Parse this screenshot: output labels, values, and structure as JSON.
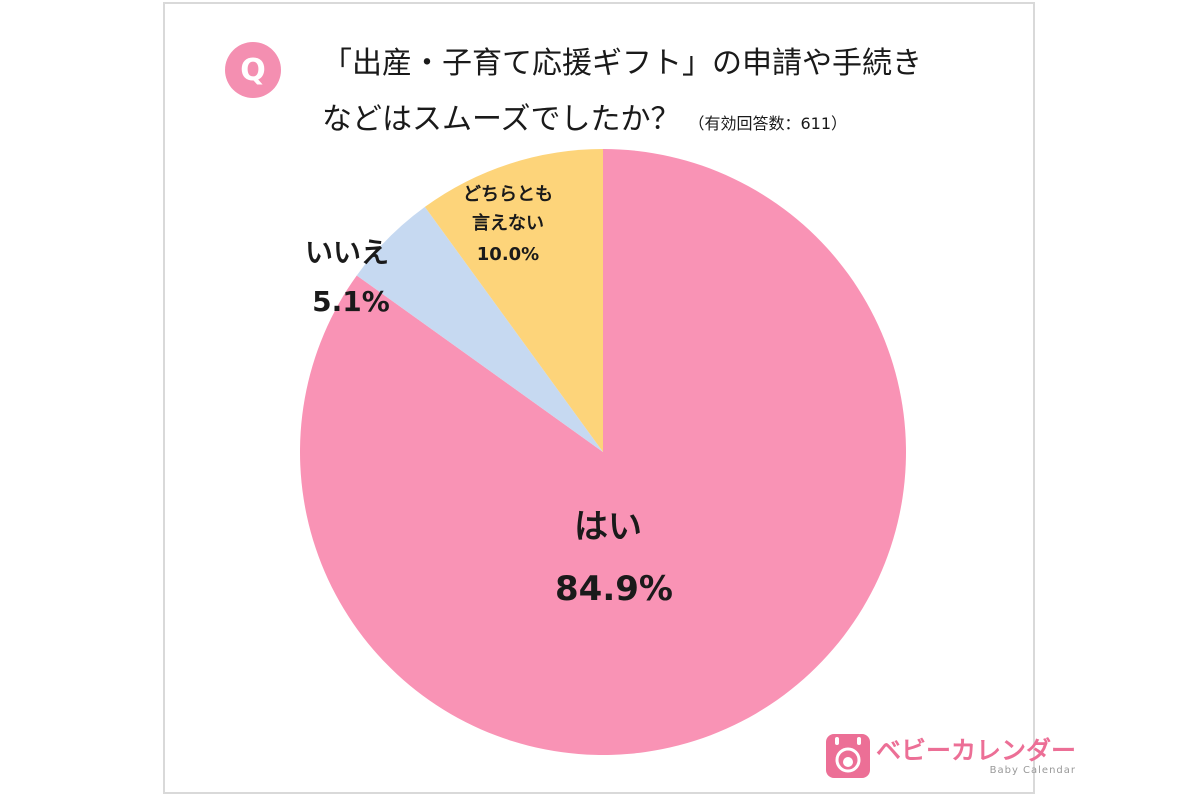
{
  "colors": {
    "accent": "#f48fb1",
    "yes": "#f993b5",
    "no": "#c6d9f1",
    "neither": "#fdd47a",
    "logo": "#ec6f96"
  },
  "question": {
    "badge": "Q",
    "line1": "「出産・子育て応援ギフト」の申請や手続き",
    "line2": "などはスムーズでしたか？",
    "note": "（有効回答数：611）"
  },
  "logo": {
    "name": "ベビーカレンダー",
    "sub": "Baby Calendar",
    "icon": "baby-calendar-icon"
  },
  "chart_data": {
    "type": "pie",
    "title": "「出産・子育て応援ギフト」の申請や手続きなどはスムーズでしたか？",
    "start": "12 o'clock",
    "direction": "clockwise",
    "slices": [
      {
        "label": "はい",
        "value": 84.9,
        "value_label": "84.9%",
        "color": "#f993b5"
      },
      {
        "label": "いいえ",
        "value": 5.1,
        "value_label": "5.1%",
        "color": "#c6d9f1"
      },
      {
        "label": "どちらとも言えない",
        "label_lines": [
          "どちらとも",
          "言えない"
        ],
        "value": 10.0,
        "value_label": "10.0%",
        "color": "#fdd47a"
      }
    ]
  }
}
